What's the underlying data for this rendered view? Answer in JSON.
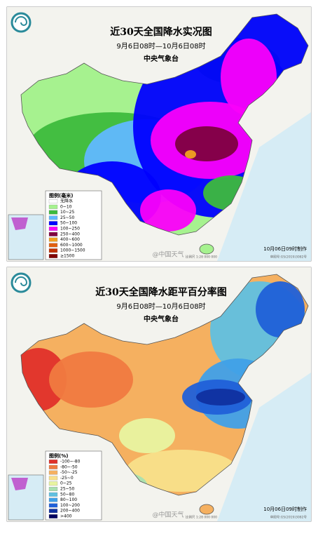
{
  "maps": [
    {
      "title": "近30天全国降水实况图",
      "subtitle": "9月6日08时—10月6日08时",
      "agency": "中央气象台",
      "legend_title": "图例(毫米)",
      "legend": [
        {
          "label": "无降水",
          "color": "#ffffff"
        },
        {
          "label": "0~10",
          "color": "#a6f28f"
        },
        {
          "label": "10~25",
          "color": "#3dba3d"
        },
        {
          "label": "25~50",
          "color": "#61b8ff"
        },
        {
          "label": "50~100",
          "color": "#0000ff"
        },
        {
          "label": "100~250",
          "color": "#fa00fa"
        },
        {
          "label": "250~400",
          "color": "#800040"
        },
        {
          "label": "400~600",
          "color": "#f0a020"
        },
        {
          "label": "600~1000",
          "color": "#e06010"
        },
        {
          "label": "1000~1500",
          "color": "#c03000"
        },
        {
          "label": "≥1500",
          "color": "#800000"
        }
      ],
      "stamp": "10月06日09时制作",
      "watermark": "@中国天气",
      "scale": "比例尺 1:28 000 000",
      "approval": "审图号:GS(2019)3082号"
    },
    {
      "title": "近30天全国降水距平百分率图",
      "subtitle": "9月6日08时—10月6日08时",
      "agency": "中央气象台",
      "legend_title": "图例(%)",
      "legend": [
        {
          "label": "-100~-80",
          "color": "#e0302a"
        },
        {
          "label": "-80~-50",
          "color": "#f07a40"
        },
        {
          "label": "-50~-25",
          "color": "#f5b060"
        },
        {
          "label": "-25~0",
          "color": "#f8e08a"
        },
        {
          "label": "0~25",
          "color": "#e8f4a0"
        },
        {
          "label": "25~50",
          "color": "#a8e0b0"
        },
        {
          "label": "50~80",
          "color": "#60c0e0"
        },
        {
          "label": "80~100",
          "color": "#40a0e8"
        },
        {
          "label": "100~200",
          "color": "#2060d8"
        },
        {
          "label": "200~400",
          "color": "#1030a0"
        },
        {
          "label": ">400",
          "color": "#000060"
        }
      ],
      "stamp": "10月06日09时制作",
      "watermark": "@中国天气",
      "scale": "比例尺 1:28 000 000",
      "approval": "审图号:GS(2019)3082号"
    }
  ]
}
